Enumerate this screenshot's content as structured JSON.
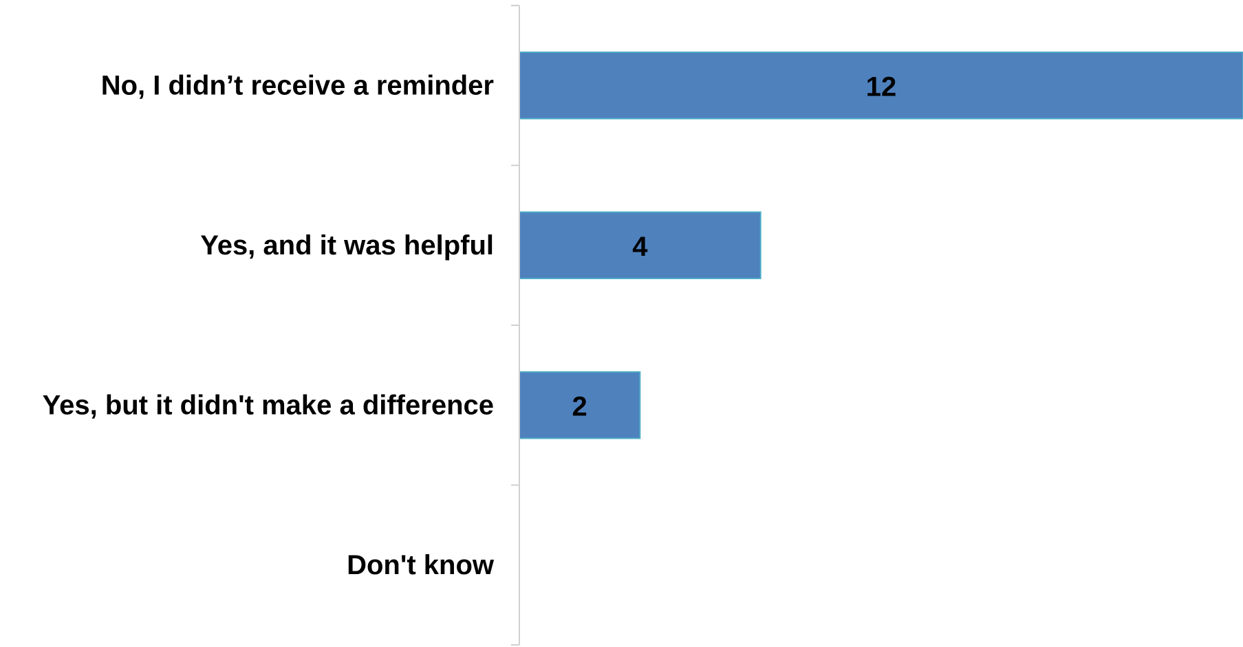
{
  "chart_data": {
    "type": "bar",
    "orientation": "horizontal",
    "categories": [
      "No, I didn’t receive a reminder",
      "Yes, and it was helpful",
      "Yes, but it didn't make a difference",
      "Don't know"
    ],
    "values": [
      12,
      4,
      2,
      0
    ],
    "data_labels": [
      "12",
      "4",
      "2",
      ""
    ],
    "xlim": [
      0,
      12
    ],
    "grid": false,
    "legend": "none",
    "colors": {
      "bar_fill": "#4F81BD",
      "bar_edge": "#4BACC6",
      "axis": "#D0D0D0",
      "text": "#000000"
    }
  }
}
